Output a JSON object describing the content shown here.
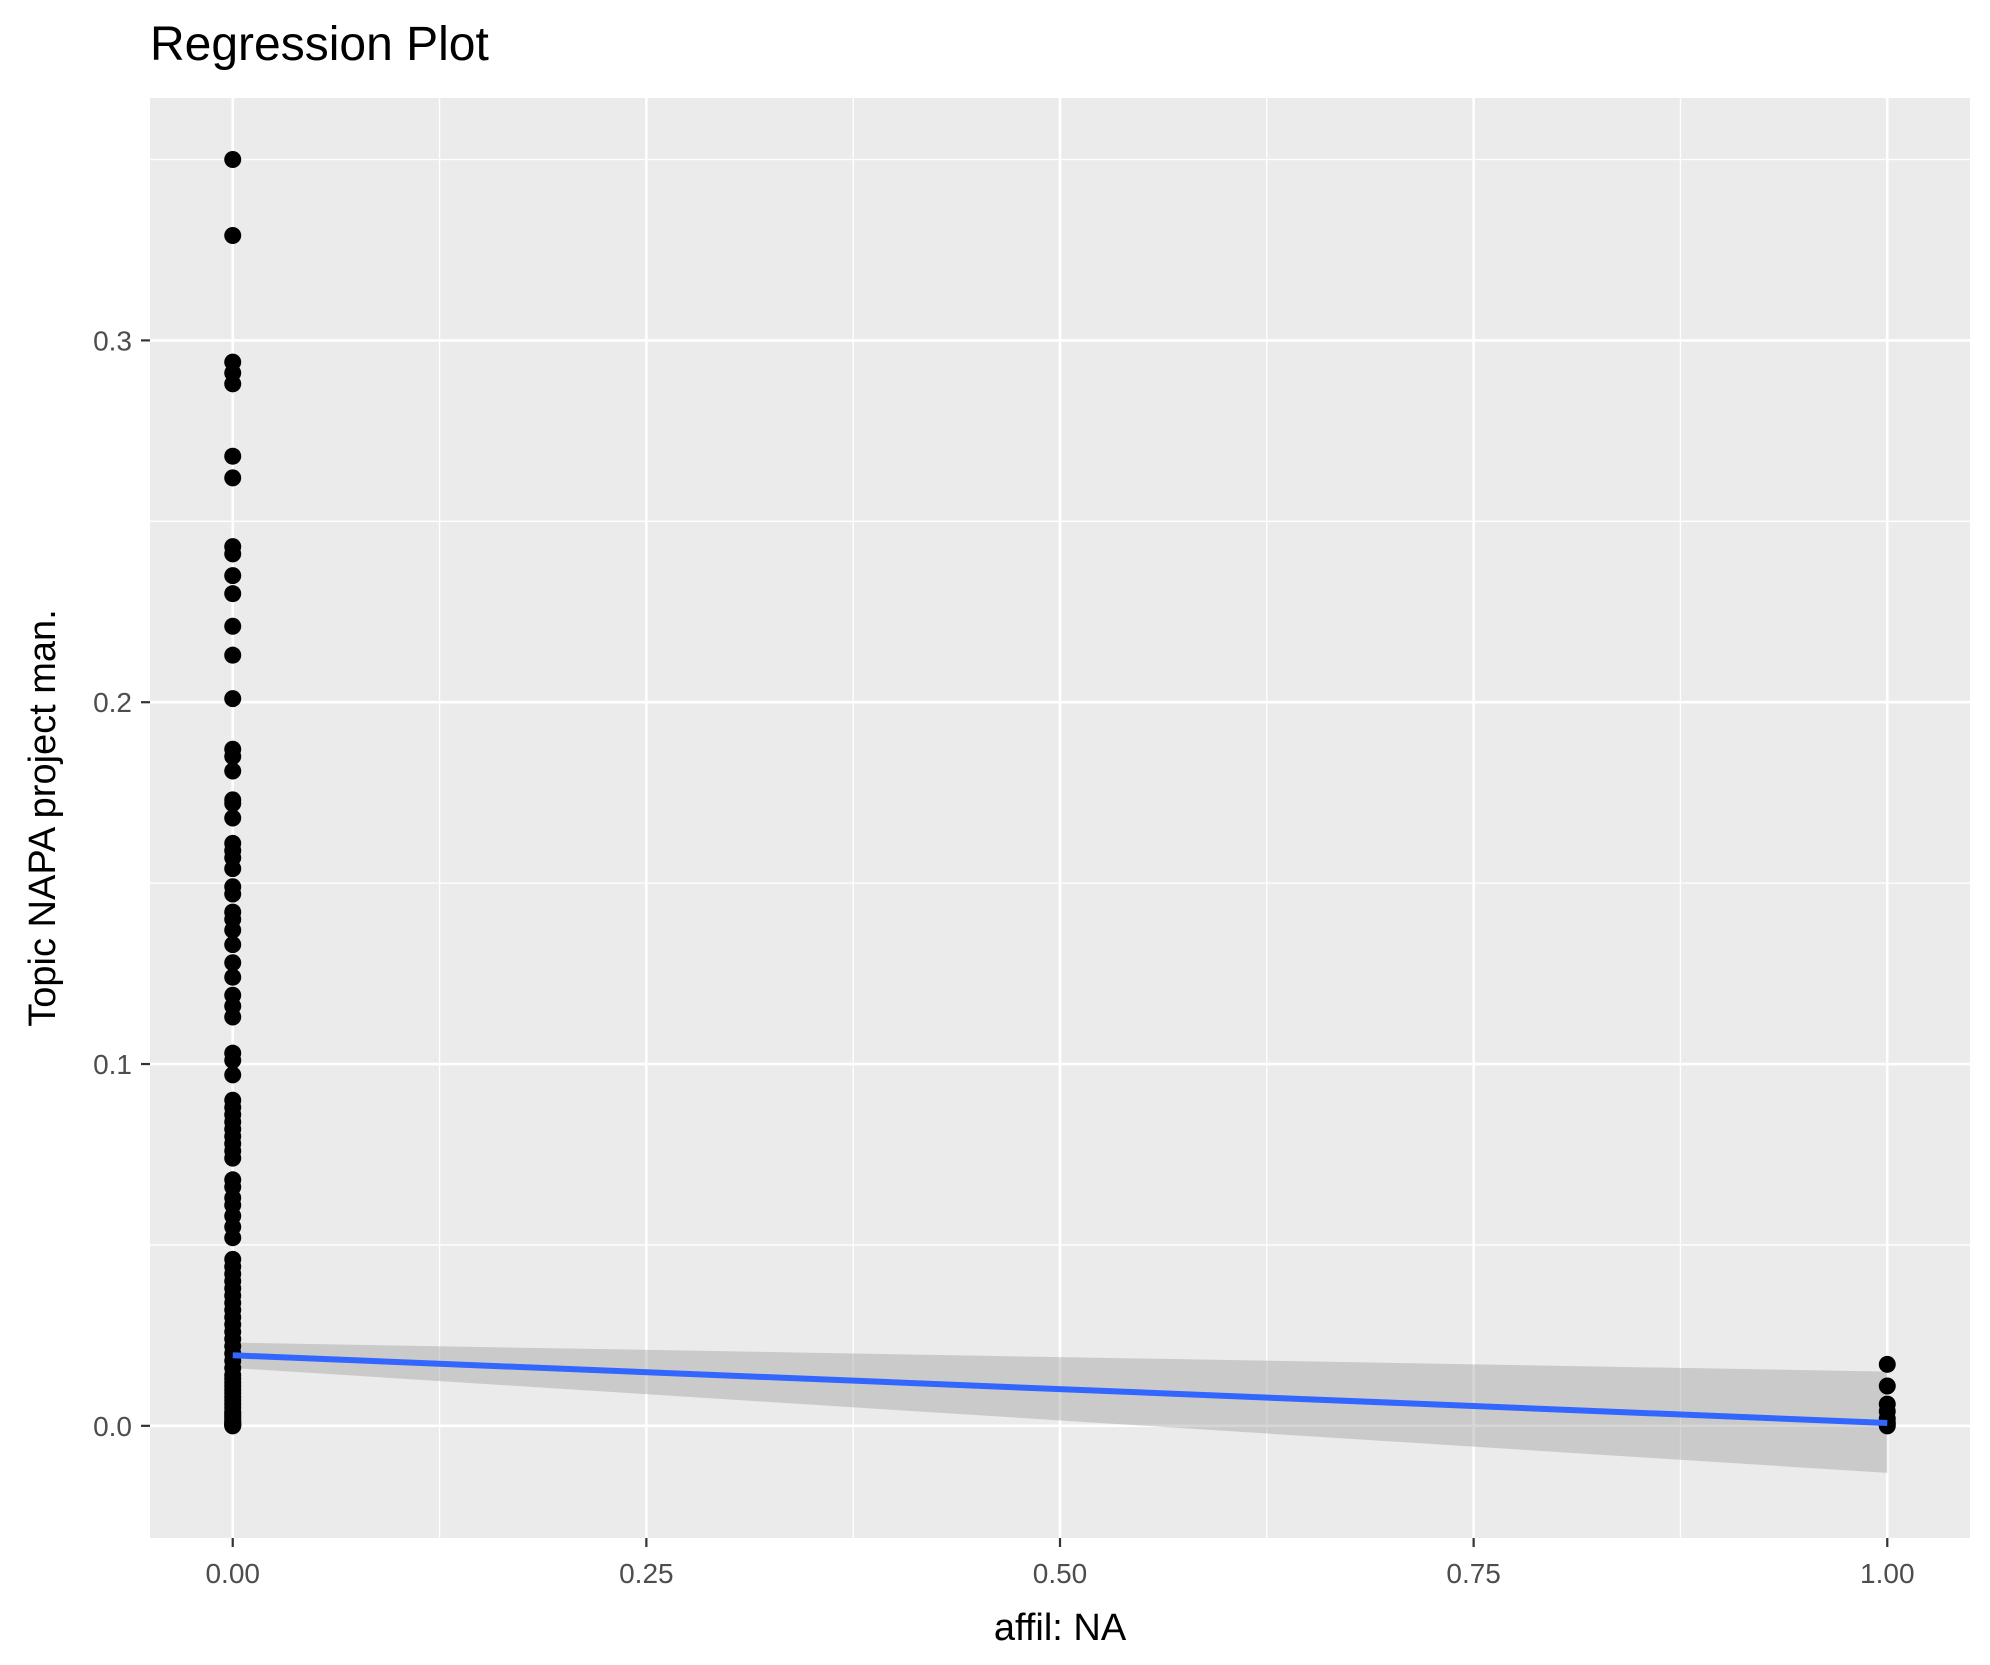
{
  "chart_data": {
    "type": "scatter",
    "title": "Regression Plot",
    "xlabel": "affil: NA",
    "ylabel": "Topic NAPA project man.",
    "xlim": [
      -0.05,
      1.05
    ],
    "ylim": [
      -0.031,
      0.367
    ],
    "x_ticks": [
      {
        "value": 0.0,
        "label": "0.00"
      },
      {
        "value": 0.25,
        "label": "0.25"
      },
      {
        "value": 0.5,
        "label": "0.50"
      },
      {
        "value": 0.75,
        "label": "0.75"
      },
      {
        "value": 1.0,
        "label": "1.00"
      }
    ],
    "y_ticks": [
      {
        "value": 0.0,
        "label": "0.0"
      },
      {
        "value": 0.1,
        "label": "0.1"
      },
      {
        "value": 0.2,
        "label": "0.2"
      },
      {
        "value": 0.3,
        "label": "0.3"
      }
    ],
    "x_minor": [
      0.125,
      0.375,
      0.625,
      0.875
    ],
    "y_minor": [
      0.05,
      0.15,
      0.25,
      0.35
    ],
    "grid": true,
    "background": "#ebebeb",
    "point_color": "#000000",
    "line_color": "#3366ff",
    "band_color": "#999999",
    "points": {
      "x": [
        0,
        0,
        0,
        0,
        0,
        0,
        0,
        0,
        0,
        0,
        0,
        0,
        0,
        0,
        0,
        0,
        0,
        0,
        0,
        0,
        0,
        0,
        0,
        0,
        0,
        0,
        0,
        0,
        0,
        0,
        0,
        0,
        0,
        0,
        0,
        0,
        0,
        0,
        0,
        0,
        0,
        0,
        0,
        0,
        0,
        0,
        0,
        0,
        0,
        0,
        0,
        0,
        0,
        0,
        0,
        0,
        0,
        0,
        0,
        0,
        0,
        0,
        0,
        0,
        0,
        0,
        0,
        0,
        0,
        0,
        0,
        0,
        0,
        0,
        0,
        0,
        0,
        0,
        0,
        0,
        0,
        0,
        0,
        0,
        0,
        0,
        0,
        0,
        0,
        0,
        0,
        0,
        1,
        1,
        1,
        1,
        1,
        1,
        1,
        1
      ],
      "y": [
        0.35,
        0.329,
        0.294,
        0.291,
        0.288,
        0.268,
        0.262,
        0.243,
        0.241,
        0.235,
        0.23,
        0.221,
        0.213,
        0.201,
        0.187,
        0.185,
        0.181,
        0.173,
        0.172,
        0.168,
        0.161,
        0.159,
        0.157,
        0.154,
        0.149,
        0.147,
        0.142,
        0.14,
        0.137,
        0.133,
        0.128,
        0.124,
        0.119,
        0.116,
        0.113,
        0.103,
        0.101,
        0.097,
        0.09,
        0.088,
        0.086,
        0.084,
        0.082,
        0.08,
        0.078,
        0.076,
        0.074,
        0.068,
        0.066,
        0.063,
        0.061,
        0.058,
        0.055,
        0.052,
        0.046,
        0.044,
        0.042,
        0.04,
        0.038,
        0.036,
        0.034,
        0.032,
        0.03,
        0.028,
        0.026,
        0.024,
        0.022,
        0.02,
        0.018,
        0.016,
        0.014,
        0.013,
        0.012,
        0.011,
        0.01,
        0.009,
        0.008,
        0.007,
        0.006,
        0.005,
        0.004,
        0.0035,
        0.003,
        0.0025,
        0.002,
        0.0015,
        0.001,
        0.0008,
        0.0005,
        0.0003,
        0.0001,
        0.0,
        0.017,
        0.011,
        0.006,
        0.004,
        0.002,
        0.001,
        0.0005,
        0.0
      ]
    },
    "regression": {
      "x": [
        0,
        1
      ],
      "y": [
        0.0195,
        0.0008
      ],
      "ci_lower": [
        0.016,
        -0.013
      ],
      "ci_upper": [
        0.023,
        0.015
      ]
    }
  }
}
